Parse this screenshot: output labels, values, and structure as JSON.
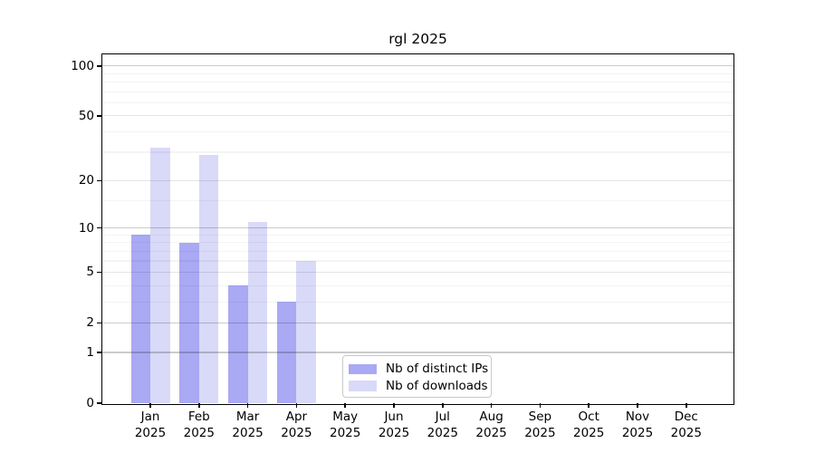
{
  "chart_data": {
    "type": "bar",
    "title": "rgl 2025",
    "categories": [
      "Jan",
      "Feb",
      "Mar",
      "Apr",
      "May",
      "Jun",
      "Jul",
      "Aug",
      "Sep",
      "Oct",
      "Nov",
      "Dec"
    ],
    "year_label": "2025",
    "series": [
      {
        "name": "Nb of distinct IPs",
        "color": "#a9a9f4",
        "values": [
          9,
          8,
          4,
          3,
          0,
          0,
          0,
          0,
          0,
          0,
          0,
          0
        ]
      },
      {
        "name": "Nb of downloads",
        "color": "#d9d9f8",
        "values": [
          32,
          29,
          11,
          6,
          0,
          0,
          0,
          0,
          0,
          0,
          0,
          0
        ]
      }
    ],
    "y_axis": {
      "scale": "log10(1+value)",
      "tick_values": [
        0,
        1,
        2,
        5,
        10,
        20,
        50,
        100
      ],
      "minor_gridline_values": [
        3,
        4,
        6,
        7,
        8,
        9,
        15,
        30,
        40,
        60,
        70,
        80,
        90
      ],
      "range": [
        0,
        118
      ]
    },
    "legend_position": "inside plot, bottom center",
    "grid": true
  }
}
